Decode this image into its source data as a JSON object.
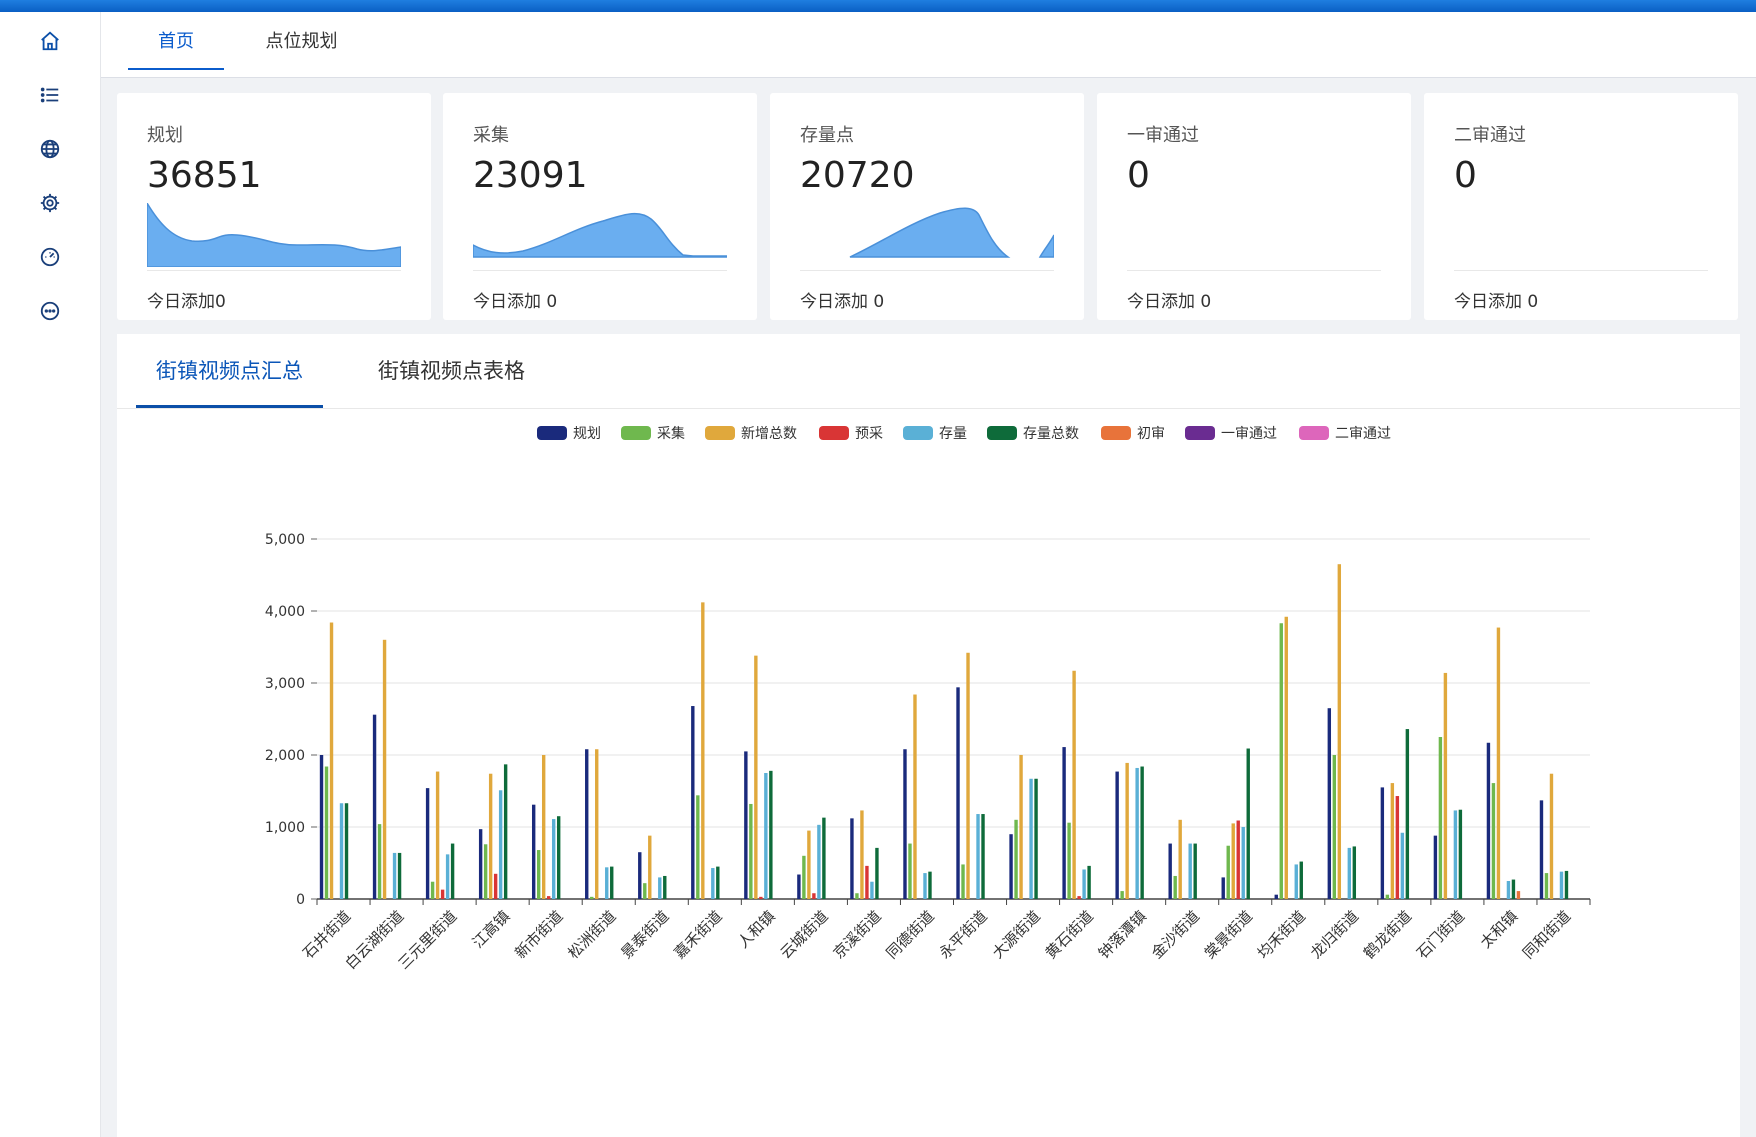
{
  "nav": {
    "icons": [
      "home-icon",
      "list-icon",
      "globe-icon",
      "gear-icon",
      "dashboard-icon",
      "chat-icon"
    ]
  },
  "tabs": [
    {
      "label": "首页",
      "active": true
    },
    {
      "label": "点位规划",
      "active": false
    }
  ],
  "stats": [
    {
      "title": "规划",
      "value": "36851",
      "footer": "今日添加0"
    },
    {
      "title": "采集",
      "value": "23091",
      "footer": "今日添加 0"
    },
    {
      "title": "存量点",
      "value": "20720",
      "footer": "今日添加 0"
    },
    {
      "title": "一审通过",
      "value": "0",
      "footer": "今日添加 0"
    },
    {
      "title": "二审通过",
      "value": "0",
      "footer": "今日添加 0"
    }
  ],
  "panel_tabs": [
    {
      "label": "街镇视频点汇总",
      "active": true
    },
    {
      "label": "街镇视频点表格",
      "active": false
    }
  ],
  "colors": {
    "accent": "#0b5ccc",
    "spark": "#6aaef0"
  },
  "chart_data": {
    "type": "bar",
    "title": "",
    "xlabel": "",
    "ylabel": "",
    "ylim": [
      0,
      5000
    ],
    "yticks": [
      "0",
      "1,000",
      "2,000",
      "3,000",
      "4,000",
      "5,000"
    ],
    "legend_position": "top-center",
    "grid": true,
    "categories": [
      "石井街道",
      "白云湖街道",
      "三元里街道",
      "江高镇",
      "新市街道",
      "松洲街道",
      "景泰街道",
      "嘉禾街道",
      "人和镇",
      "云城街道",
      "京溪街道",
      "同德街道",
      "永平街道",
      "大源街道",
      "黄石街道",
      "钟落潭镇",
      "金沙街道",
      "棠景街道",
      "均禾街道",
      "龙归街道",
      "鹤龙街道",
      "石门街道",
      "太和镇",
      "同和街道"
    ],
    "series": [
      {
        "name": "规划",
        "color": "#1a2a7c",
        "values": [
          2000,
          2560,
          1540,
          970,
          1310,
          2080,
          650,
          2680,
          2050,
          340,
          1120,
          2080,
          2940,
          900,
          2110,
          1770,
          770,
          300,
          60,
          2650,
          1550,
          880,
          2170,
          1370
        ]
      },
      {
        "name": "采集",
        "color": "#6fb84e",
        "values": [
          1840,
          1040,
          240,
          760,
          680,
          30,
          220,
          1440,
          1320,
          600,
          80,
          770,
          480,
          1100,
          1060,
          110,
          320,
          740,
          3830,
          2000,
          60,
          2250,
          1610,
          360
        ]
      },
      {
        "name": "新增总数",
        "color": "#e0a83c",
        "values": [
          3840,
          3600,
          1770,
          1740,
          2000,
          2080,
          880,
          4120,
          3380,
          950,
          1230,
          2840,
          3420,
          2000,
          3170,
          1890,
          1100,
          1050,
          3920,
          4650,
          1610,
          3140,
          3770,
          1740
        ]
      },
      {
        "name": "预采",
        "color": "#d93535",
        "values": [
          0,
          0,
          130,
          350,
          40,
          0,
          0,
          0,
          30,
          80,
          460,
          0,
          0,
          0,
          40,
          0,
          0,
          1090,
          0,
          0,
          1430,
          0,
          0,
          0
        ]
      },
      {
        "name": "存量",
        "color": "#5ab0d6",
        "values": [
          1330,
          640,
          620,
          1510,
          1110,
          440,
          300,
          430,
          1750,
          1030,
          240,
          360,
          1180,
          1670,
          410,
          1820,
          770,
          1000,
          480,
          710,
          920,
          1230,
          250,
          380
        ]
      },
      {
        "name": "存量总数",
        "color": "#0e6b3a",
        "values": [
          1330,
          640,
          770,
          1870,
          1150,
          450,
          320,
          450,
          1780,
          1130,
          710,
          380,
          1180,
          1670,
          460,
          1840,
          770,
          2090,
          520,
          730,
          2360,
          1240,
          270,
          390
        ]
      },
      {
        "name": "初审",
        "color": "#e8733a",
        "values": [
          0,
          0,
          0,
          0,
          0,
          0,
          0,
          0,
          0,
          0,
          0,
          0,
          0,
          0,
          0,
          0,
          0,
          0,
          0,
          0,
          0,
          0,
          110,
          0
        ]
      },
      {
        "name": "一审通过",
        "color": "#6a2c91",
        "values": [
          0,
          0,
          0,
          0,
          0,
          0,
          0,
          0,
          0,
          0,
          0,
          0,
          0,
          0,
          0,
          0,
          0,
          0,
          0,
          0,
          0,
          0,
          0,
          0
        ]
      },
      {
        "name": "二审通过",
        "color": "#dd66bb",
        "values": [
          0,
          0,
          0,
          0,
          0,
          0,
          0,
          0,
          0,
          0,
          0,
          0,
          0,
          0,
          0,
          0,
          0,
          0,
          0,
          0,
          0,
          0,
          0,
          0
        ]
      }
    ]
  }
}
